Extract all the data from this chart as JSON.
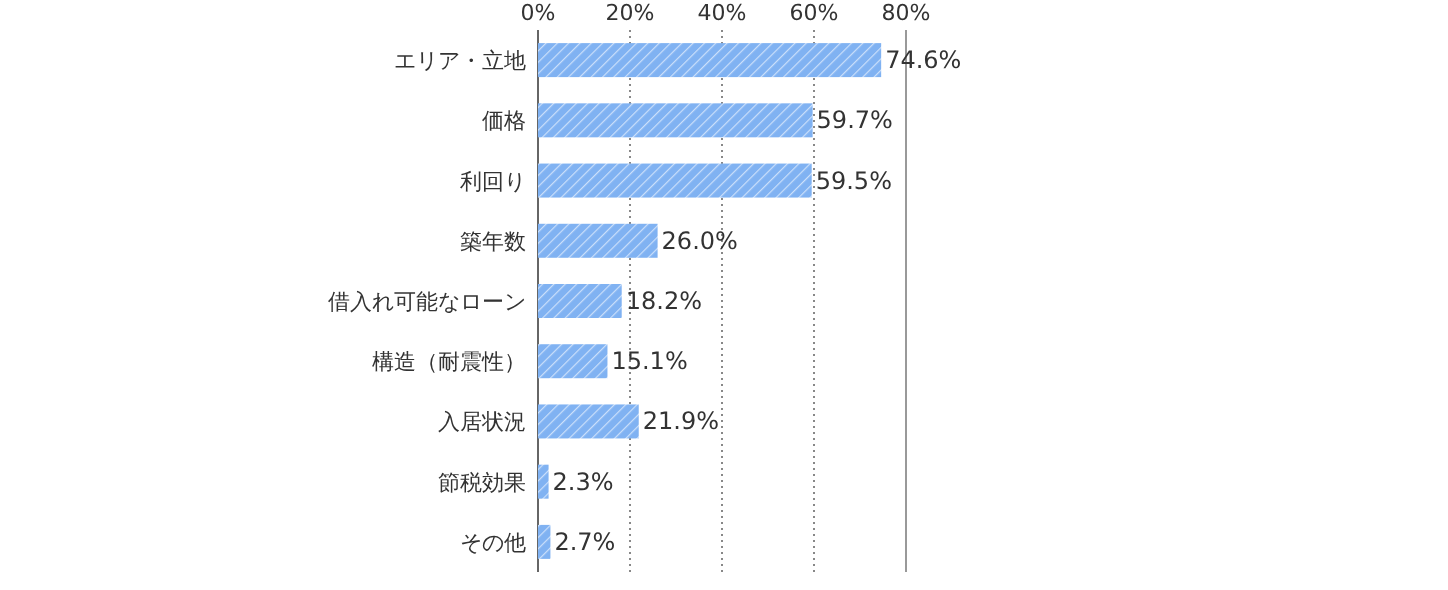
{
  "chart_data": {
    "type": "bar",
    "orientation": "horizontal",
    "categories": [
      "エリア・立地",
      "価格",
      "利回り",
      "築年数",
      "借入れ可能なローン",
      "構造（耐震性）",
      "入居状況",
      "節税効果",
      "その他"
    ],
    "values": [
      74.6,
      59.7,
      59.5,
      26.0,
      18.2,
      15.1,
      21.9,
      2.3,
      2.7
    ],
    "value_labels": [
      "74.6%",
      "59.7%",
      "59.5%",
      "26.0%",
      "18.2%",
      "15.1%",
      "21.9%",
      "2.3%",
      "2.7%"
    ],
    "color": "#80b2f2",
    "xlim": [
      0,
      80
    ],
    "xticks": [
      {
        "value": 0,
        "label": "0%"
      },
      {
        "value": 20,
        "label": "20%"
      },
      {
        "value": 40,
        "label": "40%"
      },
      {
        "value": 60,
        "label": "60%"
      },
      {
        "value": 80,
        "label": "80%"
      }
    ],
    "grid": "x"
  }
}
